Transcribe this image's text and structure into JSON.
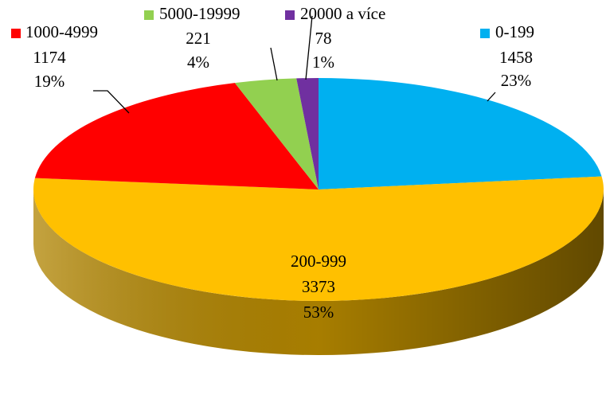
{
  "chart_data": {
    "type": "pie3d",
    "categories": [
      "0-199",
      "200-999",
      "1000-4999",
      "5000-19999",
      "20000 a více"
    ],
    "values": [
      1458,
      3373,
      1174,
      221,
      78
    ],
    "percent_labels": [
      "23%",
      "53%",
      "19%",
      "4%",
      "1%"
    ],
    "colors": [
      "#00b0f0",
      "#ffc000",
      "#ff0000",
      "#92d050",
      "#7030a0"
    ],
    "side_colors": [
      "#0080b0",
      "#b08400",
      "#b00000",
      "#6a9a38",
      "#4e1f72"
    ]
  }
}
